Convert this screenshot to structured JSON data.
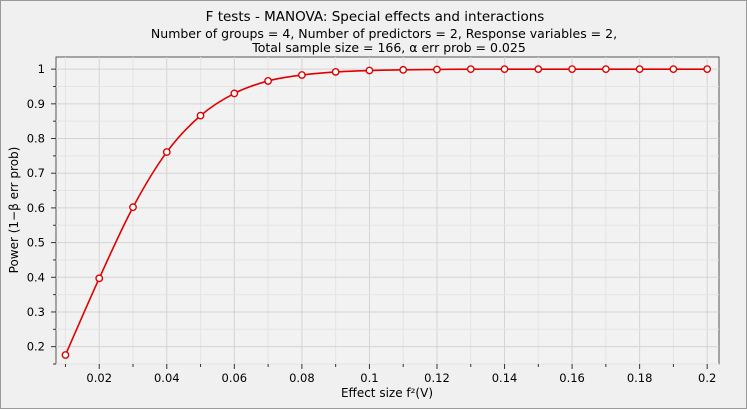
{
  "chart_data": {
    "type": "line",
    "title": "F tests - MANOVA: Special effects and interactions",
    "subtitle_lines": [
      "Number of groups = 4, Number of predictors = 2, Response variables = 2,",
      "Total sample size = 166, α err prob = 0.025"
    ],
    "xlabel": "Effect size f²(V)",
    "ylabel": "Power (1−β err prob)",
    "xlim": [
      0.0072,
      0.2035
    ],
    "ylim": [
      0.15,
      1.035
    ],
    "x_ticks": [
      0.02,
      0.04,
      0.06,
      0.08,
      0.1,
      0.12,
      0.14,
      0.16,
      0.18,
      0.2
    ],
    "x_tick_labels": [
      "0.02",
      "0.04",
      "0.06",
      "0.08",
      "0.1",
      "0.12",
      "0.14",
      "0.16",
      "0.18",
      "0.2"
    ],
    "y_ticks": [
      0.2,
      0.3,
      0.4,
      0.5,
      0.6,
      0.7,
      0.8,
      0.9,
      1.0
    ],
    "y_tick_labels": [
      "0.2",
      "0.3",
      "0.4",
      "0.5",
      "0.6",
      "0.7",
      "0.8",
      "0.9",
      "1"
    ],
    "grid": true,
    "series": [
      {
        "color": "#e00000",
        "x": [
          0.01,
          0.02,
          0.03,
          0.04,
          0.05,
          0.06,
          0.07,
          0.08,
          0.09,
          0.1,
          0.11,
          0.12,
          0.13,
          0.14,
          0.15,
          0.16,
          0.17,
          0.18,
          0.19,
          0.2
        ],
        "y": [
          0.176,
          0.397,
          0.602,
          0.761,
          0.866,
          0.93,
          0.966,
          0.983,
          0.992,
          0.996,
          0.998,
          0.999,
          1.0,
          1.0,
          1.0,
          1.0,
          1.0,
          1.0,
          1.0,
          1.0
        ]
      }
    ]
  }
}
